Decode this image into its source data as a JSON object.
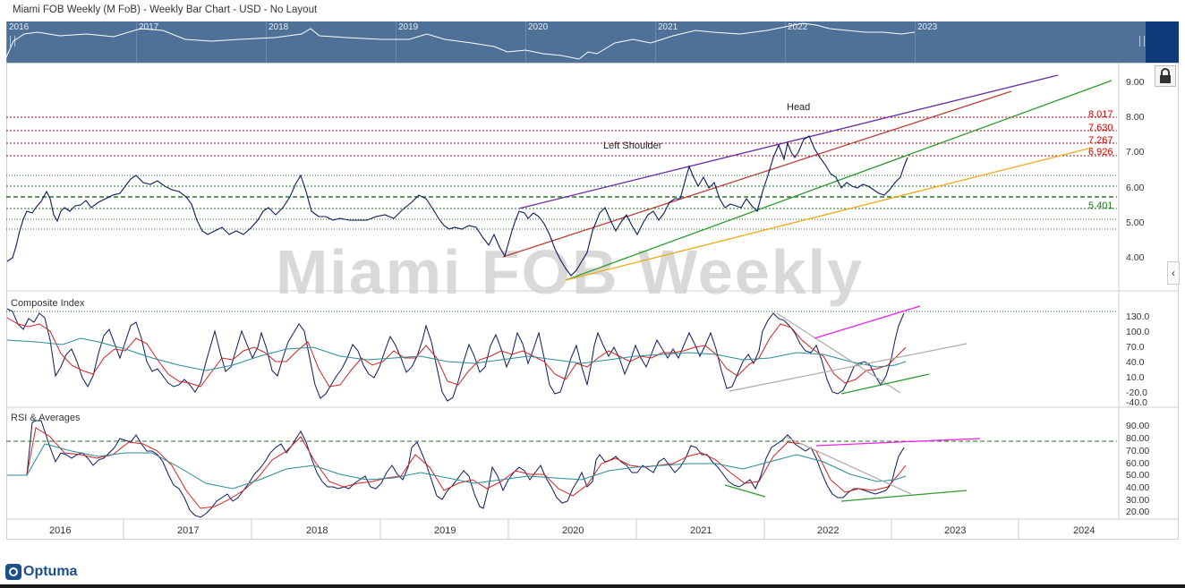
{
  "window": {
    "title": "Miami FOB Weekly (M FoB) - Weekly Bar Chart - USD - No Layout"
  },
  "navigator": {
    "years": [
      "2016",
      "2017",
      "2018",
      "2019",
      "2020",
      "2021",
      "2022",
      "2023"
    ]
  },
  "watermark": "Miami FOB Weekly",
  "price_panel": {
    "y_ticks": [
      "9.00",
      "8.00",
      "7.00",
      "6.00",
      "5.00",
      "4.00"
    ],
    "annotations": {
      "head": "Head",
      "left_shoulder": "Left Shoulder"
    },
    "level_labels": [
      "8.017",
      "7.630",
      "7.267",
      "6.926"
    ],
    "support_label": "5.401"
  },
  "composite_panel": {
    "label": "Composite Index",
    "y_ticks": [
      "130.0",
      "100.0",
      "70.0",
      "40.0",
      "10.0",
      "-20.0",
      "-40.0"
    ]
  },
  "rsi_panel": {
    "label": "RSI & Averages",
    "y_ticks": [
      "90.00",
      "80.00",
      "70.00",
      "60.00",
      "50.00",
      "40.00",
      "30.00",
      "20.00"
    ]
  },
  "x_axis": {
    "years": [
      "2016",
      "2017",
      "2018",
      "2019",
      "2020",
      "2021",
      "2022",
      "2023",
      "2024"
    ]
  },
  "logo": {
    "text": "Optuma"
  },
  "colors": {
    "navigator_bg": "#4f7198",
    "navigator_right": "#0d3a78",
    "price_line": "#0a1a5c",
    "resistance": "#cc0000",
    "support": "#1c7a1c",
    "trend_purple": "#6a2ca8",
    "trend_brown": "#b5413a",
    "trend_green": "#2e9a2e",
    "trend_orange": "#f0a818",
    "ma_red": "#d42020",
    "ma_teal": "#2a8a9a",
    "magenta": "#ee22ee",
    "gray_trend": "#aaaaaa"
  }
}
